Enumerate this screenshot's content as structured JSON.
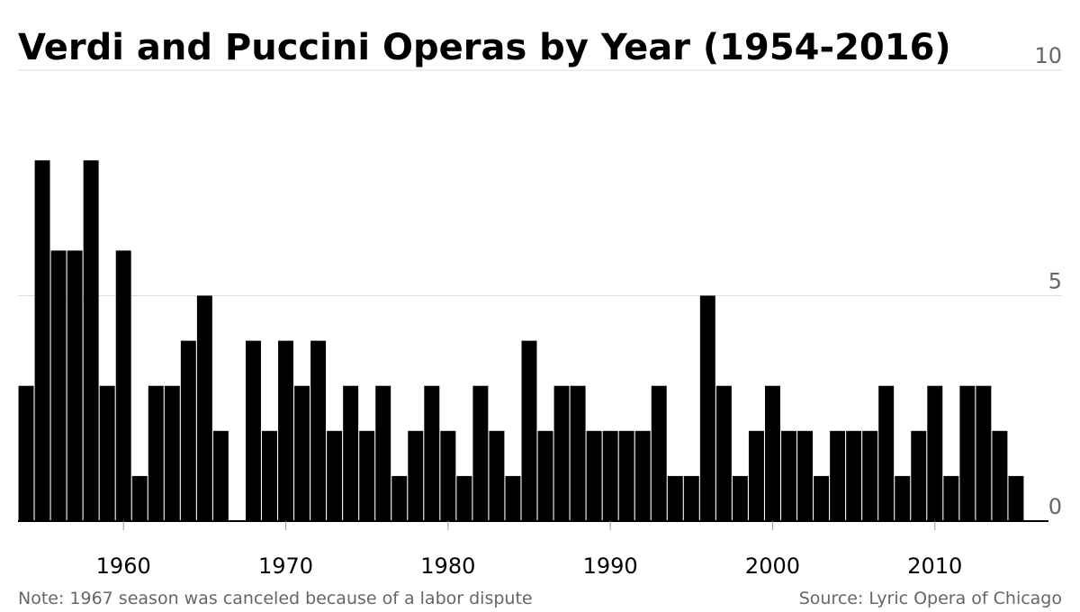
{
  "chart_data": {
    "type": "bar",
    "title": "Verdi and Puccini Operas by Year (1954-2016)",
    "note": "Note: 1967 season was canceled because of a labor dispute",
    "source": "Source: Lyric Opera of Chicago",
    "color": "#000000",
    "x": [
      1954,
      1955,
      1956,
      1957,
      1958,
      1959,
      1960,
      1961,
      1962,
      1963,
      1964,
      1965,
      1966,
      1967,
      1968,
      1969,
      1970,
      1971,
      1972,
      1973,
      1974,
      1975,
      1976,
      1977,
      1978,
      1979,
      1980,
      1981,
      1982,
      1983,
      1984,
      1985,
      1986,
      1987,
      1988,
      1989,
      1990,
      1991,
      1992,
      1993,
      1994,
      1995,
      1996,
      1997,
      1998,
      1999,
      2000,
      2001,
      2002,
      2003,
      2004,
      2005,
      2006,
      2007,
      2008,
      2009,
      2010,
      2011,
      2012,
      2013,
      2014,
      2015
    ],
    "values": [
      3,
      8,
      6,
      6,
      8,
      3,
      6,
      1,
      3,
      3,
      4,
      5,
      2,
      0,
      4,
      2,
      4,
      3,
      4,
      2,
      3,
      2,
      3,
      1,
      2,
      3,
      2,
      1,
      3,
      2,
      1,
      4,
      2,
      3,
      3,
      2,
      2,
      2,
      2,
      3,
      1,
      1,
      5,
      3,
      1,
      2,
      3,
      2,
      2,
      1,
      2,
      2,
      2,
      3,
      1,
      2,
      3,
      1,
      3,
      3,
      2,
      1
    ],
    "xlim": [
      1953.5,
      2017
    ],
    "xticks": [
      1960,
      1970,
      1980,
      1990,
      2000,
      2010
    ],
    "ylim": [
      0,
      10
    ],
    "yticks": [
      0,
      5,
      10
    ],
    "grid": true
  }
}
